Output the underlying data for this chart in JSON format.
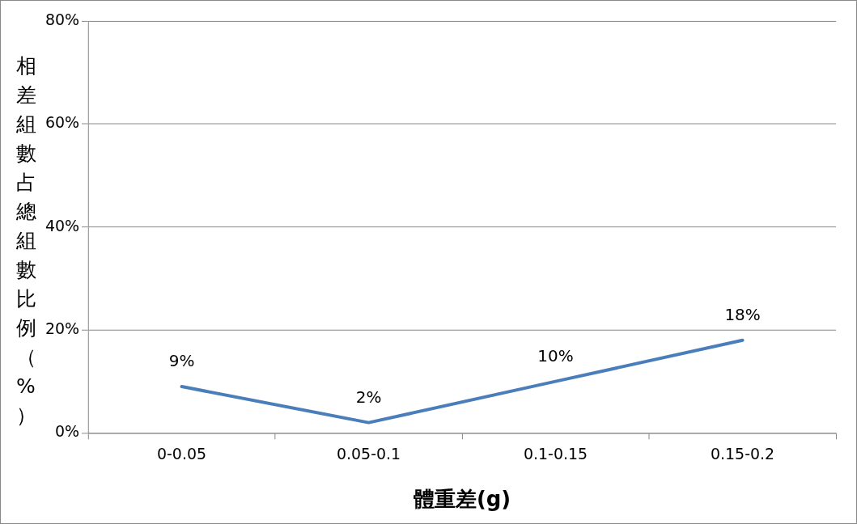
{
  "chart_data": {
    "type": "line",
    "xlabel": "體重差(g)",
    "ylabel": "相差組數占總組數比例（%）",
    "categories": [
      "0-0.05",
      "0.05-0.1",
      "0.1-0.15",
      "0.15-0.2"
    ],
    "series": [
      {
        "color": "#4a7ebb",
        "values": [
          9,
          2,
          10,
          18
        ],
        "value_labels": [
          "9%",
          "2%",
          "10%",
          "18%"
        ]
      }
    ],
    "ylim": [
      0,
      80
    ],
    "yticks": [
      {
        "value": 0,
        "label": "0%"
      },
      {
        "value": 20,
        "label": "20%"
      },
      {
        "value": 40,
        "label": "40%"
      },
      {
        "value": 60,
        "label": "60%"
      },
      {
        "value": 80,
        "label": "80%"
      }
    ],
    "grid": "y",
    "legend": false,
    "marker": "none",
    "line_style": "solid"
  }
}
